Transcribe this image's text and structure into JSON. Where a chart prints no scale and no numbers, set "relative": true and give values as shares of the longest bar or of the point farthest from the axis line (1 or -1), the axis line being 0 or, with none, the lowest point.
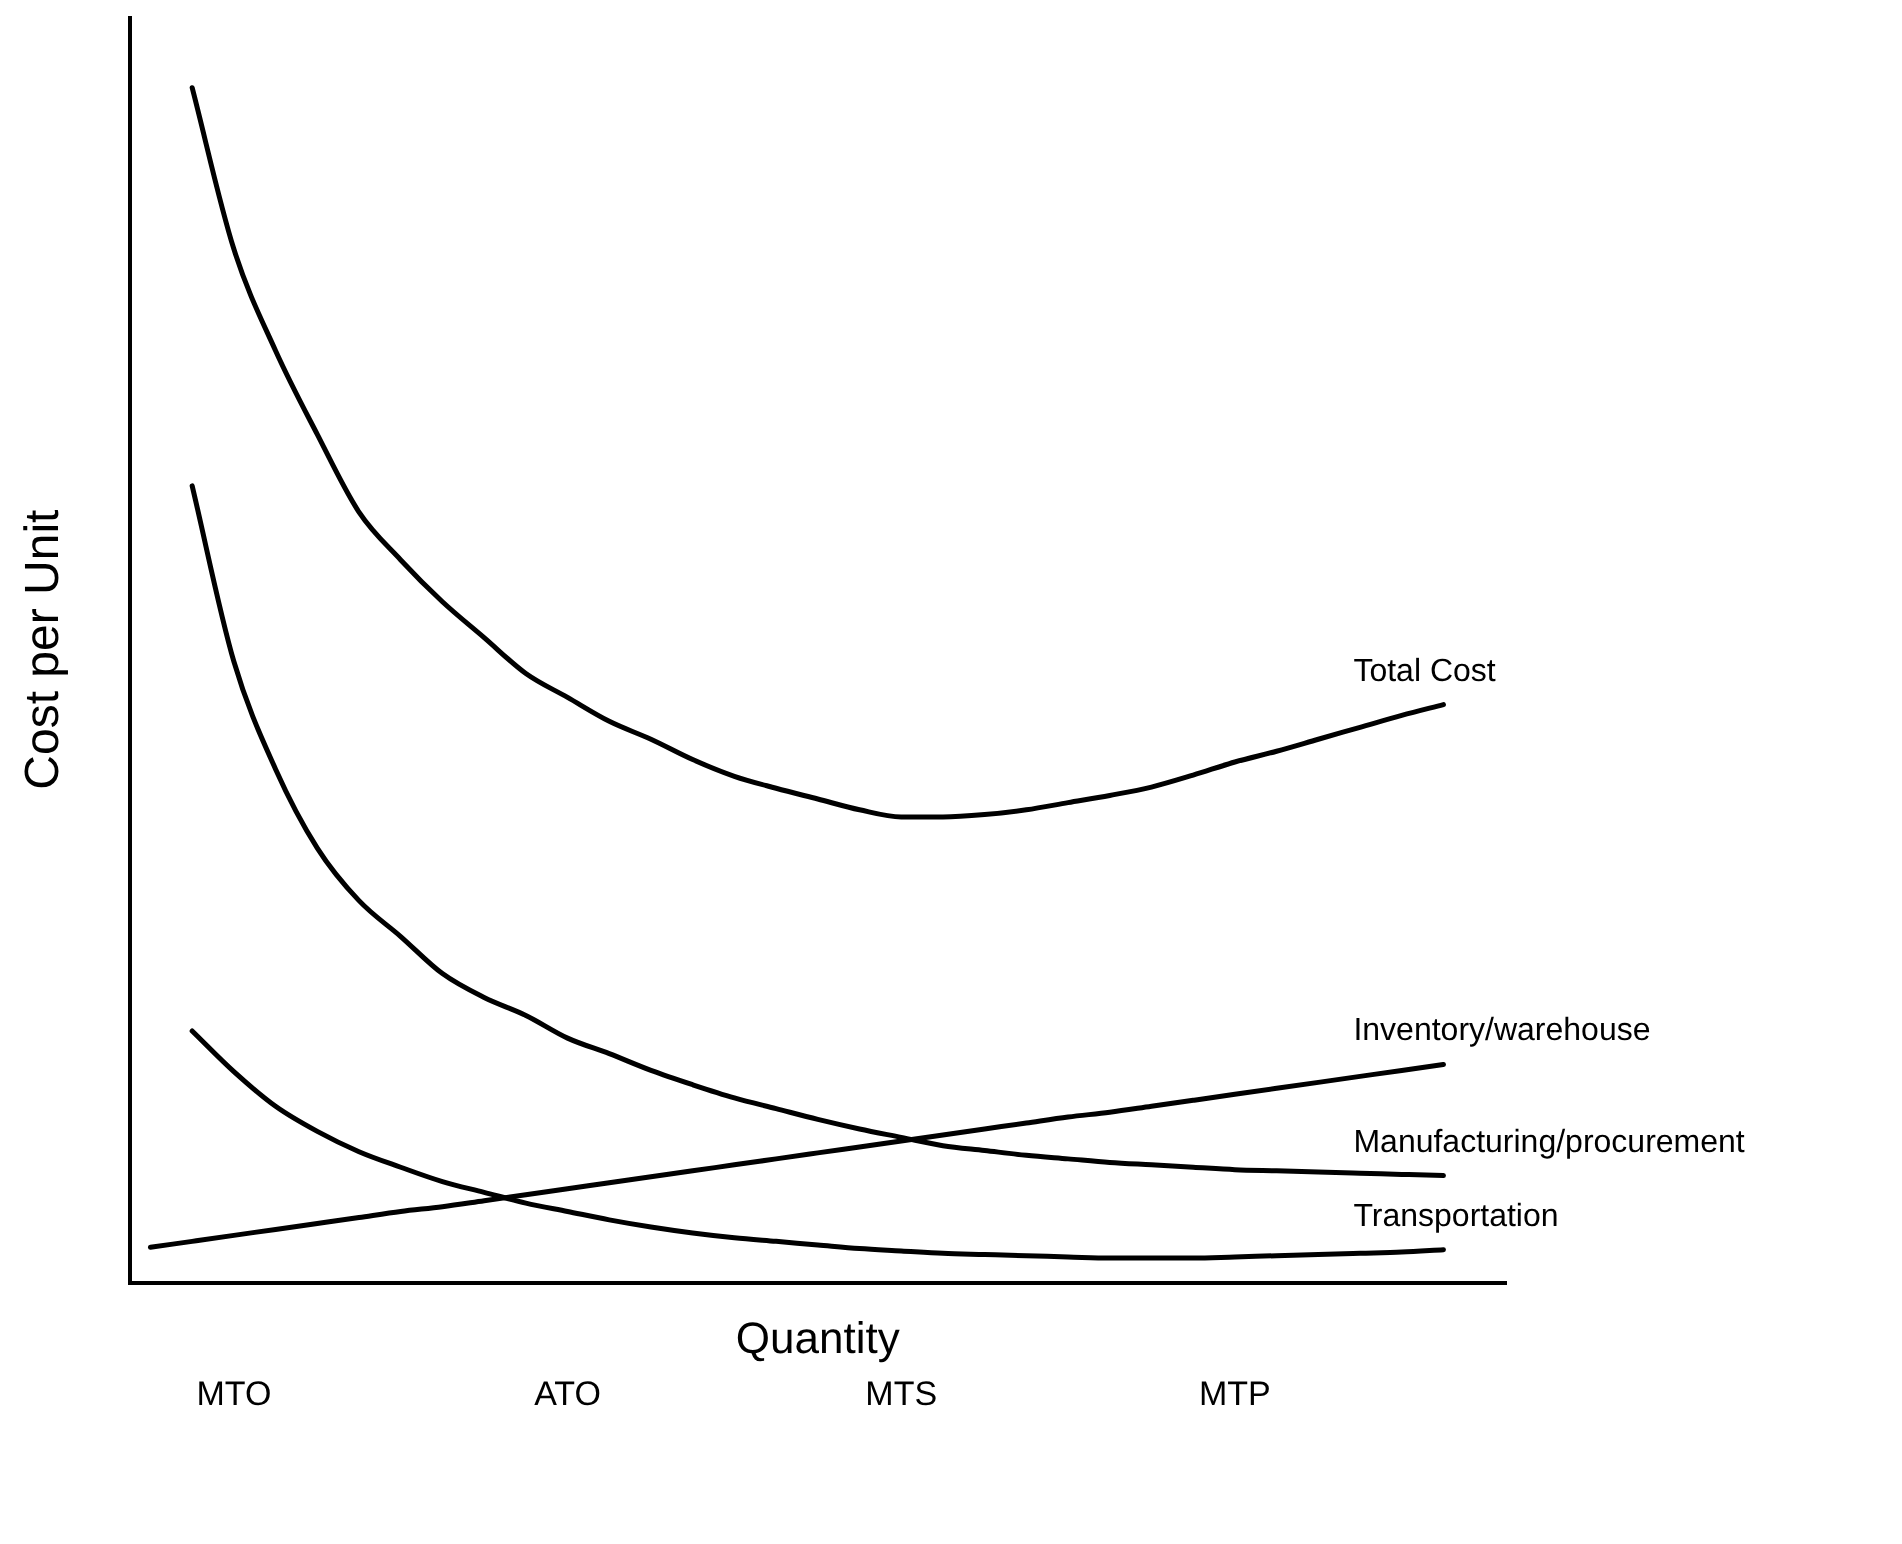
{
  "chart_data": {
    "type": "line",
    "relative": true,
    "xlabel": "Quantity",
    "ylabel": "Cost per Unit",
    "categories": [
      null,
      null,
      "MTO",
      null,
      null,
      null,
      null,
      null,
      null,
      null,
      "ATO",
      null,
      null,
      null,
      null,
      null,
      null,
      null,
      "MTS",
      null,
      null,
      null,
      null,
      null,
      null,
      null,
      "MTP",
      null,
      null,
      null,
      null,
      null,
      null
    ],
    "tick_labels": "x",
    "grid": false,
    "legend": false,
    "marker": "none",
    "line_style": "solid",
    "series": [
      {
        "name": "Total Cost",
        "color": "#000000",
        "values": [
          null,
          1.0,
          0.865,
          0.78,
          0.71,
          0.645,
          0.605,
          0.57,
          0.54,
          0.51,
          0.49,
          0.47,
          0.455,
          0.438,
          0.424,
          0.414,
          0.405,
          0.396,
          0.39,
          0.39,
          0.392,
          0.396,
          0.402,
          0.408,
          0.415,
          0.425,
          0.436,
          0.445,
          0.455,
          0.465,
          0.475,
          0.484,
          null
        ]
      },
      {
        "name": "Inventory/warehouse",
        "color": "#000000",
        "values": [
          0.03,
          0.035,
          0.04,
          0.045,
          0.05,
          0.055,
          0.06,
          0.064,
          0.069,
          0.074,
          0.079,
          0.084,
          0.089,
          0.094,
          0.099,
          0.104,
          0.109,
          0.114,
          0.119,
          0.124,
          0.129,
          0.134,
          0.139,
          0.143,
          0.148,
          0.153,
          0.158,
          0.163,
          0.168,
          0.173,
          0.178,
          0.183,
          null
        ]
      },
      {
        "name": "Manufacturing/procurement",
        "color": "#000000",
        "values": [
          null,
          0.667,
          0.52,
          0.43,
          0.364,
          0.32,
          0.29,
          0.259,
          0.239,
          0.224,
          0.205,
          0.192,
          0.178,
          0.166,
          0.155,
          0.146,
          0.137,
          0.129,
          0.122,
          0.115,
          0.111,
          0.107,
          0.104,
          0.101,
          0.099,
          0.097,
          0.095,
          0.094,
          0.093,
          0.092,
          0.091,
          0.09,
          null
        ]
      },
      {
        "name": "Transportation",
        "color": "#000000",
        "values": [
          null,
          0.211,
          0.177,
          0.148,
          0.127,
          0.11,
          0.097,
          0.085,
          0.076,
          0.067,
          0.06,
          0.053,
          0.047,
          0.042,
          0.038,
          0.035,
          0.032,
          0.029,
          0.027,
          0.025,
          0.024,
          0.023,
          0.022,
          0.021,
          0.021,
          0.021,
          0.022,
          0.023,
          0.024,
          0.025,
          0.026,
          0.028,
          null
        ]
      }
    ]
  }
}
